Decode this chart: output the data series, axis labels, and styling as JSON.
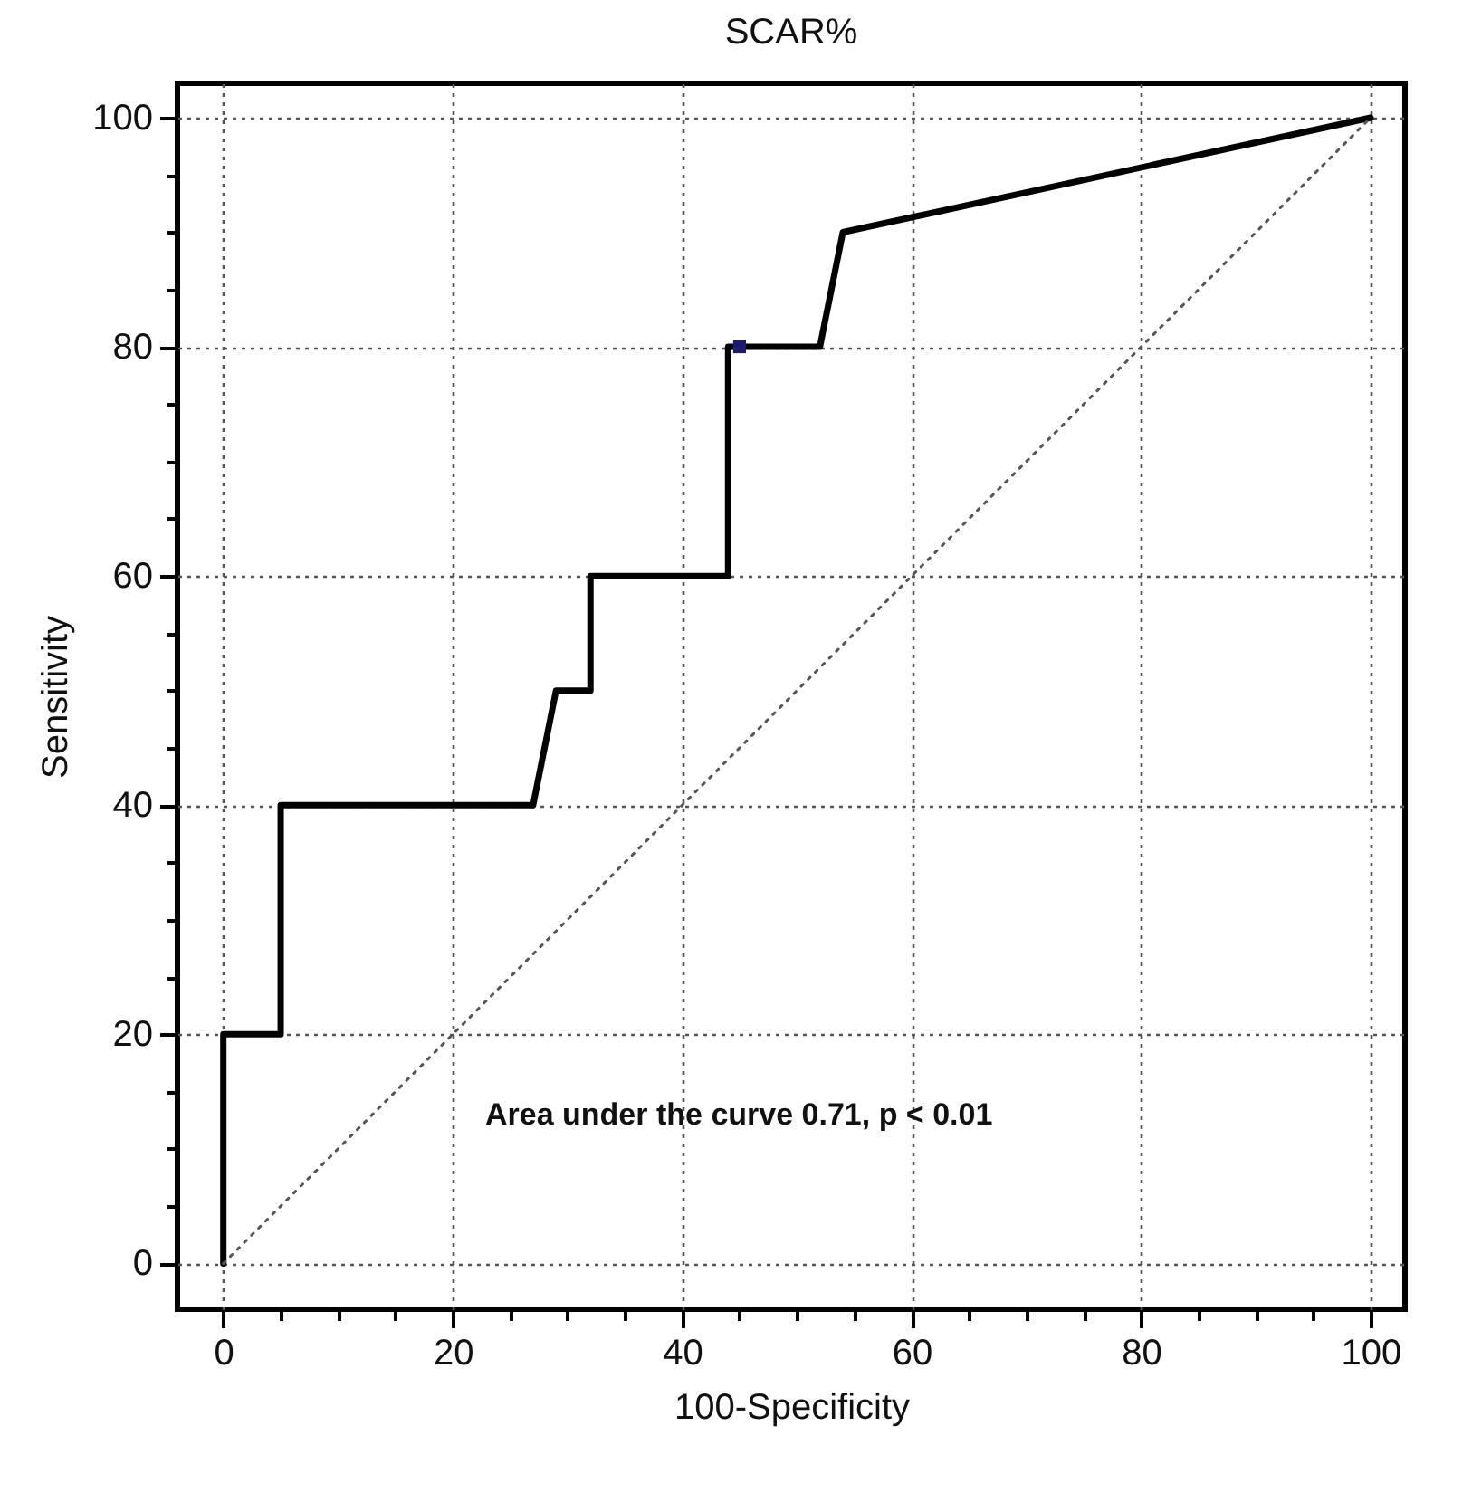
{
  "chart_data": {
    "type": "line",
    "title": "SCAR%",
    "xlabel": "100-Specificity",
    "ylabel": "Sensitivity",
    "xlim": [
      -4,
      103
    ],
    "ylim": [
      -4,
      103
    ],
    "xticks": [
      0,
      {
        "value": 5,
        "label": null
      },
      {
        "value": 10,
        "label": null
      },
      {
        "value": 15,
        "label": null
      },
      20,
      {
        "value": 25,
        "label": null
      },
      {
        "value": 30,
        "label": null
      },
      {
        "value": 35,
        "label": null
      },
      40,
      {
        "value": 45,
        "label": null
      },
      {
        "value": 50,
        "label": null
      },
      {
        "value": 55,
        "label": null
      },
      60,
      {
        "value": 65,
        "label": null
      },
      {
        "value": 70,
        "label": null
      },
      {
        "value": 75,
        "label": null
      },
      80,
      {
        "value": 85,
        "label": null
      },
      {
        "value": 90,
        "label": null
      },
      {
        "value": 95,
        "label": null
      },
      100
    ],
    "yticks": [
      0,
      {
        "value": 5,
        "label": null
      },
      {
        "value": 10,
        "label": null
      },
      {
        "value": 15,
        "label": null
      },
      20,
      {
        "value": 25,
        "label": null
      },
      {
        "value": 30,
        "label": null
      },
      {
        "value": 35,
        "label": null
      },
      40,
      {
        "value": 45,
        "label": null
      },
      {
        "value": 50,
        "label": null
      },
      {
        "value": 55,
        "label": null
      },
      60,
      {
        "value": 65,
        "label": null
      },
      {
        "value": 70,
        "label": null
      },
      {
        "value": 75,
        "label": null
      },
      80,
      {
        "value": 85,
        "label": null
      },
      {
        "value": 90,
        "label": null
      },
      {
        "value": 95,
        "label": null
      },
      100
    ],
    "grid": true,
    "series": [
      {
        "color": "#000000",
        "line_style": "solid",
        "marker": "none",
        "x": [
          0,
          0,
          5,
          5,
          27,
          29,
          32,
          32,
          44,
          44,
          52,
          54,
          100
        ],
        "values": [
          0,
          20,
          20,
          40,
          40,
          50,
          50,
          60,
          60,
          80,
          80,
          90,
          100
        ]
      },
      {
        "color": "#555555",
        "line_style": "dotted",
        "marker": "none",
        "x": [
          0,
          100
        ],
        "values": [
          0,
          100
        ]
      },
      {
        "type": "scatter",
        "color": "#1a1a6e",
        "marker": "square",
        "x": [
          45
        ],
        "values": [
          80
        ]
      }
    ],
    "annotations": [
      "Area under the curve 0.71, p < 0.01"
    ]
  }
}
